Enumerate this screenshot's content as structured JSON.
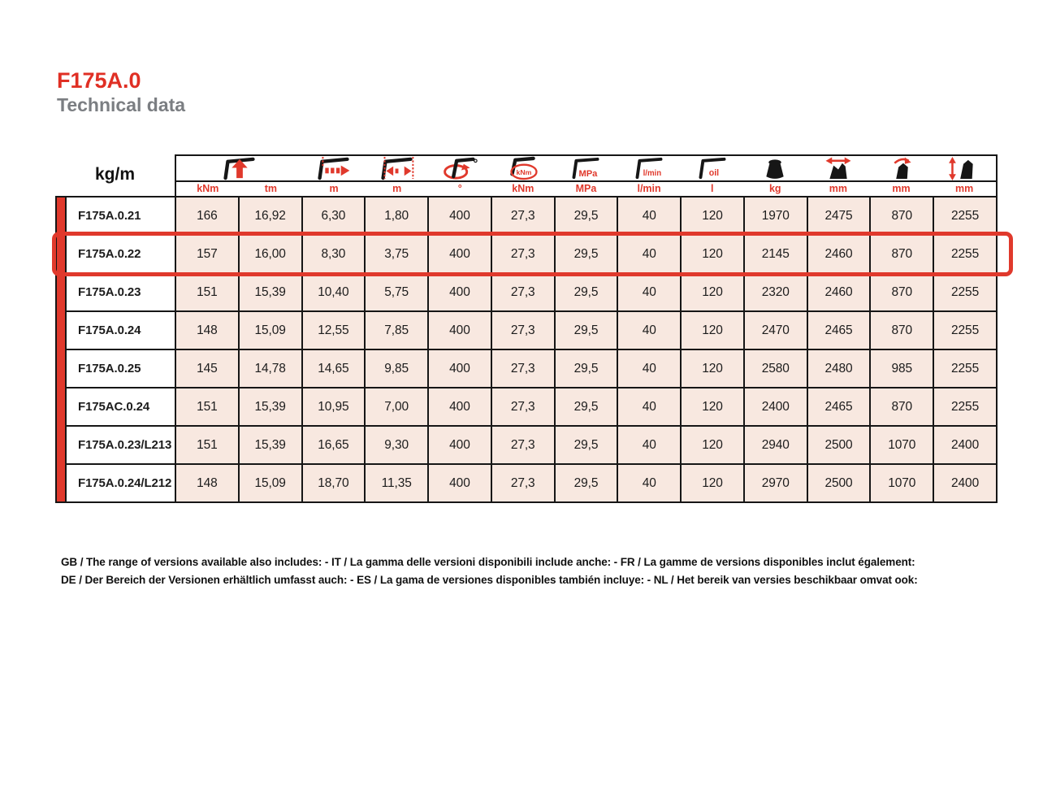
{
  "page": {
    "title": "F175A.0",
    "subtitle": "Technical data"
  },
  "colors": {
    "accent_red": "#e0392c",
    "cell_pink": "#f8e8e0",
    "title_red": "#e02f24",
    "subtitle_gray": "#7b7e82",
    "border_black": "#161616"
  },
  "table": {
    "corner_label": "kg/m",
    "icon_columns": [
      {
        "icon": "lifting-moment-icon",
        "span": 2
      },
      {
        "icon": "max-outreach-icon",
        "span": 1
      },
      {
        "icon": "hydraulic-outreach-icon",
        "span": 1
      },
      {
        "icon": "slewing-angle-icon",
        "span": 1
      },
      {
        "icon": "slewing-torque-icon",
        "span": 1
      },
      {
        "icon": "working-pressure-icon",
        "span": 1
      },
      {
        "icon": "pump-capacity-icon",
        "span": 1
      },
      {
        "icon": "oil-tank-icon",
        "span": 1
      },
      {
        "icon": "crane-weight-icon",
        "span": 1
      },
      {
        "icon": "folded-width-icon",
        "span": 1
      },
      {
        "icon": "folded-depth-icon",
        "span": 1
      },
      {
        "icon": "folded-height-icon",
        "span": 1
      }
    ],
    "units": [
      "kNm",
      "tm",
      "m",
      "m",
      "°",
      "kNm",
      "MPa",
      "l/min",
      "l",
      "kg",
      "mm",
      "mm",
      "mm"
    ],
    "rows": [
      {
        "model": "F175A.0.21",
        "highlighted": false,
        "values": [
          "166",
          "16,92",
          "6,30",
          "1,80",
          "400",
          "27,3",
          "29,5",
          "40",
          "120",
          "1970",
          "2475",
          "870",
          "2255"
        ]
      },
      {
        "model": "F175A.0.22",
        "highlighted": true,
        "values": [
          "157",
          "16,00",
          "8,30",
          "3,75",
          "400",
          "27,3",
          "29,5",
          "40",
          "120",
          "2145",
          "2460",
          "870",
          "2255"
        ]
      },
      {
        "model": "F175A.0.23",
        "highlighted": false,
        "values": [
          "151",
          "15,39",
          "10,40",
          "5,75",
          "400",
          "27,3",
          "29,5",
          "40",
          "120",
          "2320",
          "2460",
          "870",
          "2255"
        ]
      },
      {
        "model": "F175A.0.24",
        "highlighted": false,
        "values": [
          "148",
          "15,09",
          "12,55",
          "7,85",
          "400",
          "27,3",
          "29,5",
          "40",
          "120",
          "2470",
          "2465",
          "870",
          "2255"
        ]
      },
      {
        "model": "F175A.0.25",
        "highlighted": false,
        "values": [
          "145",
          "14,78",
          "14,65",
          "9,85",
          "400",
          "27,3",
          "29,5",
          "40",
          "120",
          "2580",
          "2480",
          "985",
          "2255"
        ]
      },
      {
        "model": "F175AC.0.24",
        "highlighted": false,
        "values": [
          "151",
          "15,39",
          "10,95",
          "7,00",
          "400",
          "27,3",
          "29,5",
          "40",
          "120",
          "2400",
          "2465",
          "870",
          "2255"
        ]
      },
      {
        "model": "F175A.0.23/L213",
        "highlighted": false,
        "values": [
          "151",
          "15,39",
          "16,65",
          "9,30",
          "400",
          "27,3",
          "29,5",
          "40",
          "120",
          "2940",
          "2500",
          "1070",
          "2400"
        ]
      },
      {
        "model": "F175A.0.24/L212",
        "highlighted": false,
        "values": [
          "148",
          "15,09",
          "18,70",
          "11,35",
          "400",
          "27,3",
          "29,5",
          "40",
          "120",
          "2970",
          "2500",
          "1070",
          "2400"
        ]
      }
    ]
  },
  "footer": {
    "line1": "GB / The range of versions available also includes: - IT / La gamma delle versioni disponibili include anche: - FR / La gamme de versions disponibles inclut également:",
    "line2": "DE / Der Bereich der Versionen erhältlich umfasst auch: - ES / La gama de versiones disponibles también incluye: - NL / Het bereik van versies beschikbaar omvat ook:"
  }
}
